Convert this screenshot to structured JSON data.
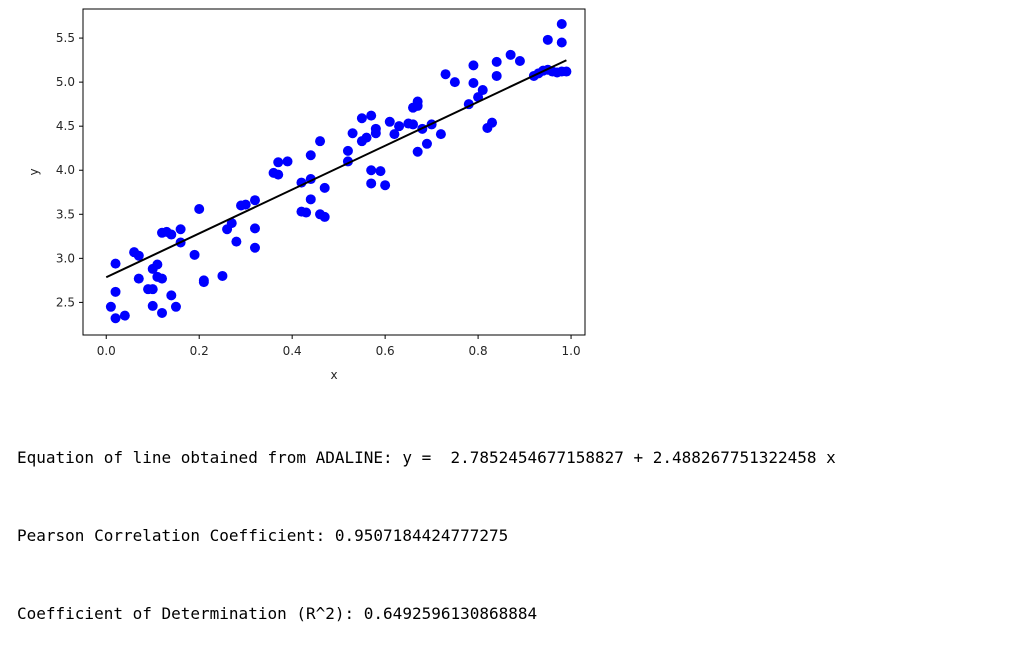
{
  "chart_data": {
    "type": "scatter",
    "xlabel": "x",
    "ylabel": "y",
    "xlim": [
      -0.05,
      1.03
    ],
    "ylim": [
      2.13,
      5.83
    ],
    "x_ticks": [
      "0.0",
      "0.2",
      "0.4",
      "0.6",
      "0.8",
      "1.0"
    ],
    "y_ticks": [
      "2.5",
      "3.0",
      "3.5",
      "4.0",
      "4.5",
      "5.0",
      "5.5"
    ],
    "grid": false,
    "point_color": "#0000ff",
    "line_color": "#000000",
    "line": {
      "intercept": 2.7852454677158827,
      "slope": 2.488267751322458,
      "x_range": [
        0.0,
        0.99
      ]
    },
    "points": [
      [
        0.01,
        2.45
      ],
      [
        0.02,
        2.62
      ],
      [
        0.02,
        2.32
      ],
      [
        0.02,
        2.94
      ],
      [
        0.04,
        2.35
      ],
      [
        0.06,
        3.07
      ],
      [
        0.07,
        3.03
      ],
      [
        0.07,
        2.77
      ],
      [
        0.09,
        2.65
      ],
      [
        0.1,
        2.65
      ],
      [
        0.1,
        2.88
      ],
      [
        0.1,
        2.46
      ],
      [
        0.11,
        2.93
      ],
      [
        0.11,
        2.79
      ],
      [
        0.12,
        2.77
      ],
      [
        0.12,
        3.29
      ],
      [
        0.12,
        2.38
      ],
      [
        0.13,
        3.3
      ],
      [
        0.14,
        2.58
      ],
      [
        0.14,
        3.27
      ],
      [
        0.15,
        2.45
      ],
      [
        0.16,
        3.33
      ],
      [
        0.16,
        3.18
      ],
      [
        0.19,
        3.04
      ],
      [
        0.2,
        3.56
      ],
      [
        0.21,
        2.73
      ],
      [
        0.21,
        2.75
      ],
      [
        0.25,
        2.8
      ],
      [
        0.26,
        3.33
      ],
      [
        0.27,
        3.4
      ],
      [
        0.28,
        3.19
      ],
      [
        0.29,
        3.6
      ],
      [
        0.3,
        3.61
      ],
      [
        0.32,
        3.66
      ],
      [
        0.32,
        3.34
      ],
      [
        0.32,
        3.12
      ],
      [
        0.36,
        3.97
      ],
      [
        0.37,
        4.09
      ],
      [
        0.37,
        3.95
      ],
      [
        0.39,
        4.1
      ],
      [
        0.42,
        3.53
      ],
      [
        0.42,
        3.86
      ],
      [
        0.43,
        3.52
      ],
      [
        0.44,
        3.9
      ],
      [
        0.44,
        3.67
      ],
      [
        0.44,
        4.17
      ],
      [
        0.46,
        3.5
      ],
      [
        0.46,
        4.33
      ],
      [
        0.47,
        3.8
      ],
      [
        0.47,
        3.47
      ],
      [
        0.52,
        4.22
      ],
      [
        0.52,
        4.1
      ],
      [
        0.53,
        4.42
      ],
      [
        0.55,
        4.59
      ],
      [
        0.55,
        4.33
      ],
      [
        0.56,
        4.37
      ],
      [
        0.57,
        4.62
      ],
      [
        0.57,
        3.85
      ],
      [
        0.57,
        4.0
      ],
      [
        0.58,
        4.47
      ],
      [
        0.58,
        4.42
      ],
      [
        0.59,
        3.99
      ],
      [
        0.6,
        3.83
      ],
      [
        0.61,
        4.55
      ],
      [
        0.62,
        4.41
      ],
      [
        0.63,
        4.5
      ],
      [
        0.65,
        4.53
      ],
      [
        0.66,
        4.52
      ],
      [
        0.66,
        4.71
      ],
      [
        0.67,
        4.78
      ],
      [
        0.67,
        4.73
      ],
      [
        0.67,
        4.21
      ],
      [
        0.68,
        4.47
      ],
      [
        0.69,
        4.3
      ],
      [
        0.7,
        4.52
      ],
      [
        0.72,
        4.41
      ],
      [
        0.73,
        5.09
      ],
      [
        0.75,
        5.0
      ],
      [
        0.78,
        4.75
      ],
      [
        0.79,
        5.19
      ],
      [
        0.79,
        4.99
      ],
      [
        0.8,
        4.83
      ],
      [
        0.81,
        4.91
      ],
      [
        0.82,
        4.48
      ],
      [
        0.83,
        4.54
      ],
      [
        0.84,
        5.07
      ],
      [
        0.84,
        5.23
      ],
      [
        0.87,
        5.31
      ],
      [
        0.89,
        5.24
      ],
      [
        0.92,
        5.07
      ],
      [
        0.93,
        5.1
      ],
      [
        0.94,
        5.13
      ],
      [
        0.95,
        5.48
      ],
      [
        0.95,
        5.14
      ],
      [
        0.96,
        5.12
      ],
      [
        0.97,
        5.11
      ],
      [
        0.98,
        5.45
      ],
      [
        0.98,
        5.66
      ],
      [
        0.98,
        5.12
      ],
      [
        0.99,
        5.12
      ]
    ]
  },
  "output": {
    "line1": "Equation of line obtained from ADALINE: y =  2.7852454677158827 + 2.488267751322458 x",
    "line2": "Pearson Correlation Coefficient: 0.9507184424777275",
    "line3": "Coefficient of Determination (R^2): 0.6492596130868884"
  }
}
